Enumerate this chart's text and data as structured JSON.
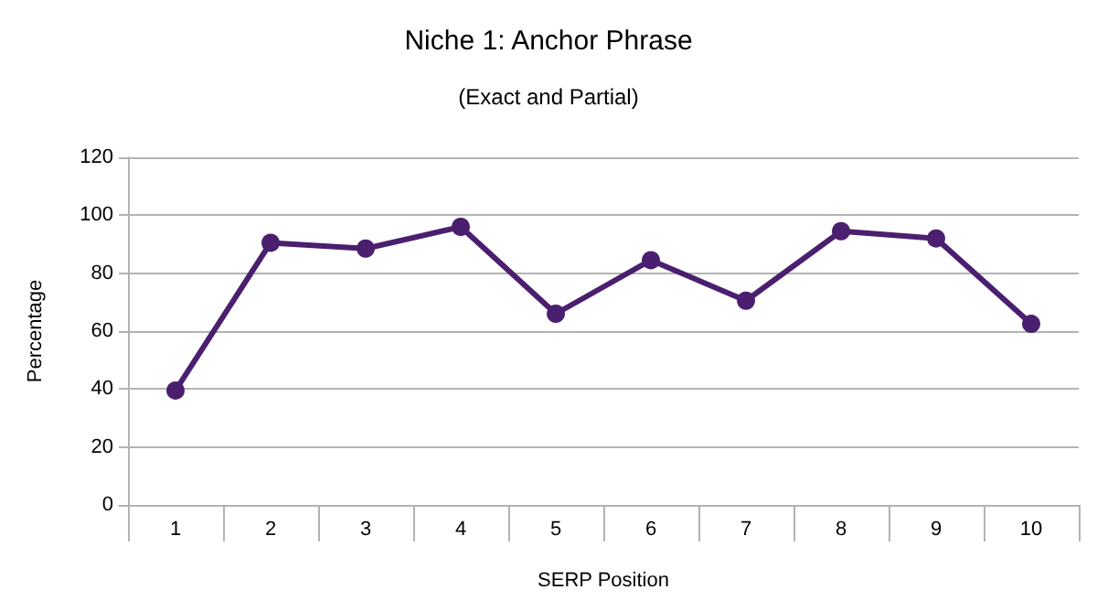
{
  "chart_data": {
    "type": "line",
    "title": "Niche 1: Anchor Phrase",
    "subtitle": "(Exact and Partial)",
    "xlabel": "SERP Position",
    "ylabel": "Percentage",
    "categories": [
      "1",
      "2",
      "3",
      "4",
      "5",
      "6",
      "7",
      "8",
      "9",
      "10"
    ],
    "series": [
      {
        "color": "#4b1f6f",
        "values": [
          39.5,
          90.5,
          88.5,
          96,
          66,
          84.5,
          70.5,
          94.5,
          92,
          62.5
        ]
      }
    ],
    "ylim": [
      0,
      120
    ],
    "yticks": [
      0,
      20,
      40,
      60,
      80,
      100,
      120
    ],
    "grid": "y",
    "marker": "circle",
    "line_style": "solid"
  }
}
